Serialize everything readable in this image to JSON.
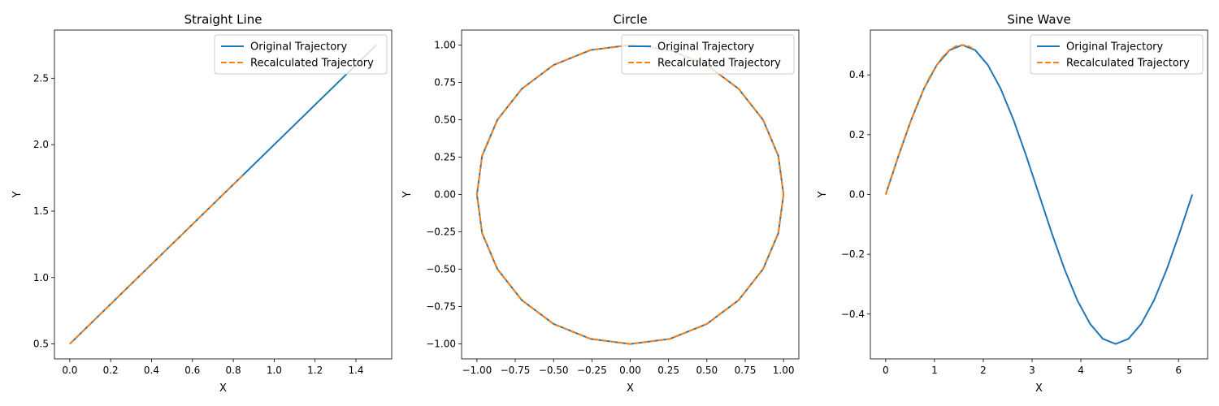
{
  "chart_data": [
    {
      "type": "line",
      "title": "Straight Line",
      "xlabel": "X",
      "ylabel": "Y",
      "xlim": [
        -0.075,
        1.575
      ],
      "ylim": [
        0.3875,
        2.8625
      ],
      "xticks": [
        0.0,
        0.2,
        0.4,
        0.6,
        0.8,
        1.0,
        1.2,
        1.4
      ],
      "xtick_labels": [
        "0.0",
        "0.2",
        "0.4",
        "0.6",
        "0.8",
        "1.0",
        "1.2",
        "1.4"
      ],
      "yticks": [
        0.5,
        1.0,
        1.5,
        2.0,
        2.5
      ],
      "ytick_labels": [
        "0.5",
        "1.0",
        "1.5",
        "2.0",
        "2.5"
      ],
      "legend": "upper-right",
      "series": [
        {
          "name": "Original Trajectory",
          "color": "#1f77b4",
          "style": "solid",
          "x": [
            0.0,
            1.5
          ],
          "y": [
            0.5,
            2.75
          ]
        },
        {
          "name": "Recalculated Trajectory",
          "color": "#ff7f0e",
          "style": "dashed",
          "x": [
            0.0,
            0.85
          ],
          "y": [
            0.5,
            1.775
          ]
        }
      ]
    },
    {
      "type": "line",
      "title": "Circle",
      "xlabel": "X",
      "ylabel": "Y",
      "xlim": [
        -1.1,
        1.1
      ],
      "ylim": [
        -1.1,
        1.1
      ],
      "xticks": [
        -1.0,
        -0.75,
        -0.5,
        -0.25,
        0.0,
        0.25,
        0.5,
        0.75,
        1.0
      ],
      "xtick_labels": [
        "−1.00",
        "−0.75",
        "−0.50",
        "−0.25",
        "0.00",
        "0.25",
        "0.50",
        "0.75",
        "1.00"
      ],
      "yticks": [
        -1.0,
        -0.75,
        -0.5,
        -0.25,
        0.0,
        0.25,
        0.5,
        0.75,
        1.0
      ],
      "ytick_labels": [
        "−1.00",
        "−0.75",
        "−0.50",
        "−0.25",
        "0.00",
        "0.25",
        "0.50",
        "0.75",
        "1.00"
      ],
      "legend": "upper-right",
      "series": [
        {
          "name": "Original Trajectory",
          "color": "#1f77b4",
          "style": "solid",
          "x": [
            1.0,
            0.966,
            0.866,
            0.707,
            0.5,
            0.259,
            0.0,
            -0.259,
            -0.5,
            -0.707,
            -0.866,
            -0.966,
            -1.0,
            -0.966,
            -0.866,
            -0.707,
            -0.5,
            -0.259,
            0.0,
            0.259,
            0.5,
            0.707,
            0.866,
            0.966,
            1.0
          ],
          "y": [
            0.0,
            0.259,
            0.5,
            0.707,
            0.866,
            0.966,
            1.0,
            0.966,
            0.866,
            0.707,
            0.5,
            0.259,
            0.0,
            -0.259,
            -0.5,
            -0.707,
            -0.866,
            -0.966,
            -1.0,
            -0.966,
            -0.866,
            -0.707,
            -0.5,
            -0.259,
            0.0
          ]
        },
        {
          "name": "Recalculated Trajectory",
          "color": "#ff7f0e",
          "style": "dashed",
          "x": [
            1.0,
            0.966,
            0.866,
            0.707,
            0.5,
            0.259,
            0.0,
            -0.259,
            -0.5,
            -0.707,
            -0.866,
            -0.966,
            -1.0,
            -0.966,
            -0.866,
            -0.707,
            -0.5,
            -0.259,
            0.0,
            0.259,
            0.5,
            0.707,
            0.866,
            0.966,
            1.0
          ],
          "y": [
            0.0,
            0.259,
            0.5,
            0.707,
            0.866,
            0.966,
            1.0,
            0.966,
            0.866,
            0.707,
            0.5,
            0.259,
            0.0,
            -0.259,
            -0.5,
            -0.707,
            -0.866,
            -0.966,
            -1.0,
            -0.966,
            -0.866,
            -0.707,
            -0.5,
            -0.259,
            0.0
          ]
        }
      ]
    },
    {
      "type": "line",
      "title": "Sine Wave",
      "xlabel": "X",
      "ylabel": "Y",
      "xlim": [
        -0.314,
        6.597
      ],
      "ylim": [
        -0.55,
        0.55
      ],
      "xticks": [
        0,
        1,
        2,
        3,
        4,
        5,
        6
      ],
      "xtick_labels": [
        "0",
        "1",
        "2",
        "3",
        "4",
        "5",
        "6"
      ],
      "yticks": [
        -0.4,
        -0.2,
        0.0,
        0.2,
        0.4
      ],
      "ytick_labels": [
        "−0.4",
        "−0.2",
        "0.0",
        "0.2",
        "0.4"
      ],
      "legend": "upper-right",
      "series": [
        {
          "name": "Original Trajectory",
          "color": "#1f77b4",
          "style": "solid",
          "x": [
            0.0,
            0.262,
            0.524,
            0.785,
            1.047,
            1.309,
            1.571,
            1.833,
            2.094,
            2.356,
            2.618,
            2.88,
            3.142,
            3.403,
            3.665,
            3.927,
            4.189,
            4.451,
            4.712,
            4.974,
            5.236,
            5.498,
            5.76,
            6.021,
            6.283
          ],
          "y": [
            0.0,
            0.129,
            0.25,
            0.354,
            0.433,
            0.483,
            0.5,
            0.483,
            0.433,
            0.354,
            0.25,
            0.129,
            0.0,
            -0.129,
            -0.25,
            -0.354,
            -0.433,
            -0.483,
            -0.5,
            -0.483,
            -0.433,
            -0.354,
            -0.25,
            -0.129,
            0.0
          ]
        },
        {
          "name": "Recalculated Trajectory",
          "color": "#ff7f0e",
          "style": "dashed",
          "x": [
            0.0,
            0.131,
            0.262,
            0.393,
            0.524,
            0.654,
            0.785,
            0.916,
            1.047,
            1.178,
            1.309,
            1.44,
            1.571,
            1.702,
            1.833
          ],
          "y": [
            0.0,
            0.065,
            0.129,
            0.191,
            0.25,
            0.304,
            0.354,
            0.397,
            0.433,
            0.462,
            0.483,
            0.496,
            0.5,
            0.496,
            0.483
          ]
        }
      ]
    }
  ]
}
